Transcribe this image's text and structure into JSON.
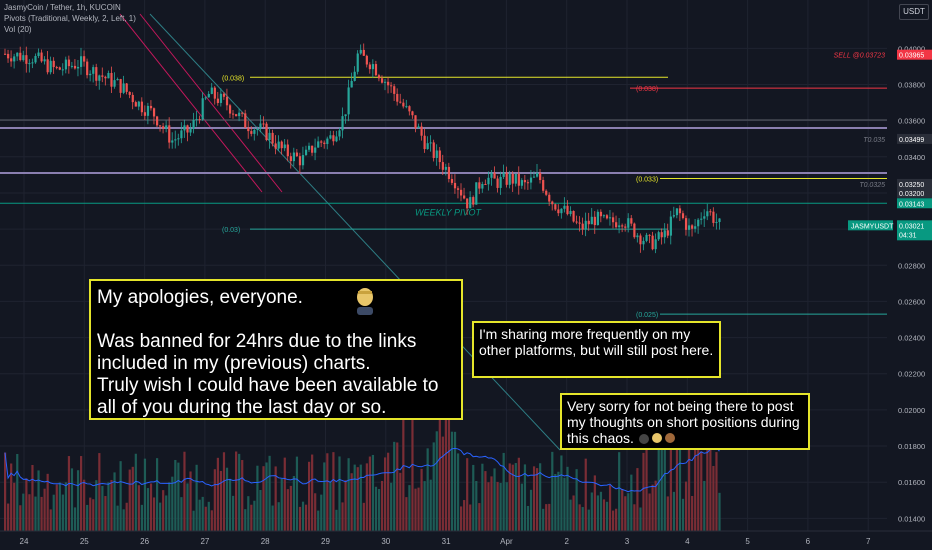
{
  "header": {
    "symbol_line": "JasmyCoin / Tether, 1h, KUCOIN",
    "pivots_line": "Pivots (Traditional, Weekly, 2, Left, 1)",
    "vol_line": "Vol (20)",
    "currency": "USDT"
  },
  "notes": {
    "apology": "My apologies, everyone.\n\nWas banned for 24hrs due to the links included in my (previous) charts.\nTruly wish I could have been available to all of you during the last day or so.",
    "sharing": "I'm sharing more frequently on my other platforms, but will still post here.",
    "sorry": "Very sorry for not being there to post my thoughts on short positions during this chaos."
  },
  "chart_data": {
    "type": "candlestick",
    "symbol": "JASMYUSDT",
    "x_ticks": [
      "24",
      "25",
      "26",
      "27",
      "28",
      "29",
      "30",
      "31",
      "Apr",
      "2",
      "3",
      "4",
      "5",
      "6",
      "7"
    ],
    "y_ticks": [
      "0.04000",
      "0.03800",
      "0.03600",
      "0.03400",
      "0.03200",
      "0.03000",
      "0.02800",
      "0.02600",
      "0.02400",
      "0.02200",
      "0.02000",
      "0.01800",
      "0.01600",
      "0.01400"
    ],
    "ylim": [
      0.0133,
      0.0419
    ],
    "last_price": {
      "label": "JASMYUSDT",
      "value": "0.03021",
      "countdown": "04:31"
    },
    "price_tags": [
      {
        "label": "SELL @0.03723",
        "value": "0.03965",
        "color": "#f23645"
      },
      {
        "label": "T0.035",
        "value": "0.03499",
        "color": "#787b86"
      },
      {
        "label": "T0.0325",
        "value": "0.03250",
        "color": "#787b86"
      },
      {
        "label": "",
        "value": "0.03200",
        "color": "#787b86"
      },
      {
        "label": "",
        "value": "0.03143",
        "color": "#089981"
      }
    ],
    "levels": [
      {
        "label": "(0.038)",
        "value": 0.0384,
        "color": "#e5e52a"
      },
      {
        "label": "(0.038)",
        "value": 0.0378,
        "color": "#f23645"
      },
      {
        "label": "(0.033)",
        "value": 0.0328,
        "color": "#e5e52a"
      },
      {
        "label": "WEEKLY PIVOT",
        "value": 0.03143,
        "color": "#089981"
      },
      {
        "label": "(0.03)",
        "value": 0.03,
        "color": "#26a69a"
      },
      {
        "label": "(0.025)",
        "value": 0.0253,
        "color": "#26a69a"
      }
    ],
    "price_path": [
      [
        0,
        0.0397
      ],
      [
        6,
        0.0395
      ],
      [
        11,
        0.0388
      ],
      [
        16,
        0.0392
      ],
      [
        20,
        0.0386
      ],
      [
        25,
        0.0379
      ],
      [
        29,
        0.0369
      ],
      [
        32,
        0.0364
      ],
      [
        36,
        0.0349
      ],
      [
        40,
        0.0355
      ],
      [
        44,
        0.0375
      ],
      [
        48,
        0.0369
      ],
      [
        52,
        0.0358
      ],
      [
        56,
        0.0354
      ],
      [
        60,
        0.0343
      ],
      [
        64,
        0.0338
      ],
      [
        67,
        0.0347
      ],
      [
        70,
        0.035
      ],
      [
        73,
        0.0362
      ],
      [
        76,
        0.0396
      ],
      [
        79,
        0.0392
      ],
      [
        82,
        0.0382
      ],
      [
        85,
        0.0371
      ],
      [
        88,
        0.036
      ],
      [
        91,
        0.0346
      ],
      [
        94,
        0.0337
      ],
      [
        97,
        0.0327
      ],
      [
        100,
        0.0313
      ],
      [
        103,
        0.0329
      ],
      [
        106,
        0.0326
      ],
      [
        109,
        0.0328
      ],
      [
        112,
        0.0324
      ],
      [
        115,
        0.0329
      ],
      [
        118,
        0.0315
      ],
      [
        121,
        0.0309
      ],
      [
        124,
        0.03
      ],
      [
        127,
        0.0306
      ],
      [
        130,
        0.0303
      ],
      [
        133,
        0.0306
      ],
      [
        136,
        0.0298
      ],
      [
        139,
        0.0292
      ],
      [
        142,
        0.0296
      ],
      [
        145,
        0.031
      ],
      [
        148,
        0.0298
      ],
      [
        151,
        0.0312
      ],
      [
        154,
        0.0302
      ]
    ],
    "volume_scale_hint": "relative"
  }
}
